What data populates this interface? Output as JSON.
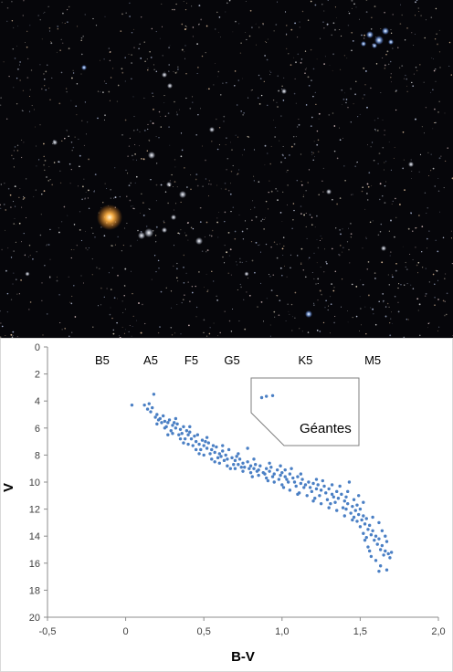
{
  "photo": {
    "kind": "star-field photograph",
    "background_color": "#06060a"
  },
  "chart_data": {
    "type": "scatter",
    "xlabel": "B-V",
    "ylabel": "V",
    "xlim": [
      -0.5,
      2.0
    ],
    "ylim": [
      0,
      20
    ],
    "y_inverted": true,
    "grid": false,
    "x_ticks": [
      "-0,5",
      "0",
      "0,5",
      "1,0",
      "1,5",
      "2,0"
    ],
    "y_ticks": [
      "0",
      "2",
      "4",
      "6",
      "8",
      "10",
      "12",
      "14",
      "16",
      "18",
      "20"
    ],
    "spectral_labels": [
      {
        "label": "B5",
        "x": -0.15
      },
      {
        "label": "A5",
        "x": 0.16
      },
      {
        "label": "F5",
        "x": 0.42
      },
      {
        "label": "G5",
        "x": 0.68
      },
      {
        "label": "K5",
        "x": 1.15
      },
      {
        "label": "M5",
        "x": 1.58
      }
    ],
    "annotation": "Géantes",
    "marker_color": "#4a7fc4",
    "giants": [
      [
        0.87,
        3.75
      ],
      [
        0.9,
        3.65
      ],
      [
        0.94,
        3.6
      ]
    ],
    "main_sequence": [
      [
        0.04,
        4.3
      ],
      [
        0.12,
        4.3
      ],
      [
        0.15,
        4.2
      ],
      [
        0.17,
        4.5
      ],
      [
        0.18,
        3.5
      ],
      [
        0.2,
        5.0
      ],
      [
        0.22,
        5.3
      ],
      [
        0.24,
        5.1
      ],
      [
        0.25,
        5.5
      ],
      [
        0.27,
        5.6
      ],
      [
        0.28,
        5.4
      ],
      [
        0.3,
        5.8
      ],
      [
        0.31,
        5.6
      ],
      [
        0.32,
        6.0
      ],
      [
        0.33,
        5.7
      ],
      [
        0.35,
        6.1
      ],
      [
        0.36,
        6.4
      ],
      [
        0.37,
        5.9
      ],
      [
        0.39,
        6.2
      ],
      [
        0.4,
        6.5
      ],
      [
        0.41,
        6.3
      ],
      [
        0.42,
        6.8
      ],
      [
        0.44,
        6.6
      ],
      [
        0.45,
        7.0
      ],
      [
        0.46,
        6.5
      ],
      [
        0.47,
        7.2
      ],
      [
        0.49,
        6.9
      ],
      [
        0.5,
        7.3
      ],
      [
        0.51,
        7.0
      ],
      [
        0.52,
        7.5
      ],
      [
        0.53,
        7.1
      ],
      [
        0.55,
        7.6
      ],
      [
        0.56,
        7.3
      ],
      [
        0.57,
        7.8
      ],
      [
        0.58,
        7.4
      ],
      [
        0.6,
        7.9
      ],
      [
        0.61,
        8.1
      ],
      [
        0.62,
        7.7
      ],
      [
        0.64,
        8.0
      ],
      [
        0.65,
        8.3
      ],
      [
        0.66,
        7.6
      ],
      [
        0.68,
        8.2
      ],
      [
        0.7,
        8.4
      ],
      [
        0.71,
        8.1
      ],
      [
        0.72,
        8.7
      ],
      [
        0.73,
        8.3
      ],
      [
        0.75,
        8.6
      ],
      [
        0.76,
        8.9
      ],
      [
        0.78,
        8.5
      ],
      [
        0.8,
        8.8
      ],
      [
        0.82,
        9.0
      ],
      [
        0.83,
        8.7
      ],
      [
        0.85,
        9.1
      ],
      [
        0.86,
        8.8
      ],
      [
        0.88,
        9.3
      ],
      [
        0.9,
        9.0
      ],
      [
        0.92,
        9.2
      ],
      [
        0.93,
        8.9
      ],
      [
        0.95,
        9.4
      ],
      [
        0.97,
        9.1
      ],
      [
        0.99,
        9.5
      ],
      [
        1.0,
        9.3
      ],
      [
        1.02,
        9.6
      ],
      [
        1.03,
        9.8
      ],
      [
        1.05,
        9.4
      ],
      [
        1.07,
        9.7
      ],
      [
        1.08,
        10.0
      ],
      [
        1.1,
        9.6
      ],
      [
        1.12,
        10.1
      ],
      [
        1.13,
        9.8
      ],
      [
        1.15,
        10.2
      ],
      [
        1.17,
        10.0
      ],
      [
        1.18,
        10.4
      ],
      [
        1.2,
        10.1
      ],
      [
        1.22,
        10.5
      ],
      [
        1.23,
        10.2
      ],
      [
        1.25,
        10.6
      ],
      [
        1.27,
        10.3
      ],
      [
        1.28,
        10.8
      ],
      [
        1.3,
        10.5
      ],
      [
        1.32,
        10.9
      ],
      [
        1.33,
        11.1
      ],
      [
        1.35,
        10.7
      ],
      [
        1.36,
        11.2
      ],
      [
        1.38,
        10.9
      ],
      [
        1.4,
        11.4
      ],
      [
        1.41,
        11.1
      ],
      [
        1.42,
        11.6
      ],
      [
        1.43,
        10.0
      ],
      [
        1.45,
        11.8
      ],
      [
        1.46,
        11.3
      ],
      [
        1.47,
        12.1
      ],
      [
        1.48,
        11.7
      ],
      [
        1.49,
        12.4
      ],
      [
        1.5,
        12.0
      ],
      [
        1.51,
        12.8
      ],
      [
        1.52,
        12.5
      ],
      [
        1.53,
        13.1
      ],
      [
        1.54,
        12.7
      ],
      [
        1.55,
        13.5
      ],
      [
        1.56,
        13.2
      ],
      [
        1.57,
        13.9
      ],
      [
        1.58,
        13.6
      ],
      [
        1.59,
        14.3
      ],
      [
        1.6,
        14.0
      ],
      [
        1.61,
        14.6
      ],
      [
        1.62,
        14.2
      ],
      [
        1.63,
        15.0
      ],
      [
        1.64,
        14.7
      ],
      [
        1.65,
        15.4
      ],
      [
        1.66,
        15.1
      ],
      [
        1.67,
        16.5
      ],
      [
        1.68,
        15.3
      ],
      [
        1.7,
        15.2
      ],
      [
        1.62,
        16.6
      ],
      [
        1.6,
        15.8
      ],
      [
        1.55,
        14.8
      ],
      [
        1.52,
        13.8
      ],
      [
        1.48,
        12.9
      ],
      [
        1.44,
        12.3
      ],
      [
        1.39,
        11.9
      ],
      [
        1.34,
        11.5
      ],
      [
        1.29,
        11.3
      ],
      [
        1.24,
        11.0
      ],
      [
        1.19,
        10.7
      ],
      [
        1.14,
        10.4
      ],
      [
        1.09,
        10.3
      ],
      [
        1.04,
        10.0
      ],
      [
        0.98,
        9.8
      ],
      [
        0.94,
        9.6
      ],
      [
        0.89,
        9.4
      ],
      [
        0.84,
        9.2
      ],
      [
        0.79,
        9.0
      ],
      [
        0.74,
        8.9
      ],
      [
        0.69,
        8.7
      ],
      [
        0.63,
        8.4
      ],
      [
        0.59,
        8.2
      ],
      [
        0.54,
        7.9
      ],
      [
        0.48,
        7.6
      ],
      [
        0.43,
        7.3
      ],
      [
        0.38,
        6.8
      ],
      [
        0.34,
        6.5
      ],
      [
        0.29,
        6.2
      ],
      [
        0.26,
        5.9
      ],
      [
        0.23,
        5.6
      ],
      [
        0.21,
        5.4
      ],
      [
        0.19,
        5.2
      ],
      [
        0.16,
        4.8
      ],
      [
        0.78,
        7.5
      ],
      [
        0.99,
        8.8
      ],
      [
        1.06,
        9.0
      ],
      [
        1.26,
        9.9
      ],
      [
        1.37,
        10.3
      ],
      [
        1.49,
        11.0
      ],
      [
        1.58,
        12.6
      ],
      [
        1.64,
        13.6
      ],
      [
        1.66,
        14.0
      ],
      [
        1.56,
        15.1
      ],
      [
        1.53,
        14.3
      ],
      [
        1.46,
        12.6
      ],
      [
        1.41,
        12.0
      ],
      [
        1.31,
        11.6
      ],
      [
        1.21,
        11.2
      ],
      [
        1.11,
        10.8
      ],
      [
        1.01,
        10.4
      ],
      [
        0.91,
        9.9
      ],
      [
        0.81,
        9.6
      ],
      [
        0.67,
        9.0
      ],
      [
        0.57,
        8.5
      ],
      [
        0.47,
        7.9
      ],
      [
        0.37,
        7.1
      ],
      [
        0.27,
        6.5
      ],
      [
        0.32,
        5.3
      ],
      [
        0.41,
        5.9
      ],
      [
        0.52,
        6.7
      ],
      [
        0.62,
        7.3
      ],
      [
        0.72,
        7.9
      ],
      [
        0.82,
        8.3
      ],
      [
        0.92,
        8.6
      ],
      [
        1.02,
        9.1
      ],
      [
        1.12,
        9.4
      ],
      [
        1.22,
        9.8
      ],
      [
        1.32,
        10.2
      ],
      [
        1.42,
        10.7
      ],
      [
        1.52,
        11.5
      ],
      [
        1.62,
        13.0
      ],
      [
        1.67,
        14.4
      ],
      [
        1.69,
        15.6
      ],
      [
        1.63,
        16.2
      ],
      [
        1.57,
        15.5
      ],
      [
        1.54,
        14.1
      ],
      [
        1.5,
        13.3
      ],
      [
        1.45,
        12.8
      ],
      [
        1.4,
        12.5
      ],
      [
        1.35,
        12.1
      ],
      [
        1.3,
        11.9
      ],
      [
        1.25,
        11.6
      ],
      [
        1.2,
        11.4
      ],
      [
        1.16,
        11.0
      ],
      [
        1.1,
        10.9
      ],
      [
        1.05,
        10.6
      ],
      [
        1.0,
        10.2
      ],
      [
        0.95,
        10.0
      ],
      [
        0.9,
        9.7
      ],
      [
        0.85,
        9.5
      ],
      [
        0.8,
        9.3
      ],
      [
        0.75,
        9.2
      ],
      [
        0.7,
        9.0
      ],
      [
        0.65,
        8.8
      ],
      [
        0.6,
        8.6
      ],
      [
        0.55,
        8.3
      ],
      [
        0.5,
        8.0
      ],
      [
        0.45,
        7.6
      ],
      [
        0.4,
        7.2
      ],
      [
        0.35,
        6.8
      ],
      [
        0.3,
        6.4
      ],
      [
        0.25,
        6.0
      ],
      [
        0.2,
        5.7
      ],
      [
        0.14,
        4.6
      ]
    ]
  }
}
